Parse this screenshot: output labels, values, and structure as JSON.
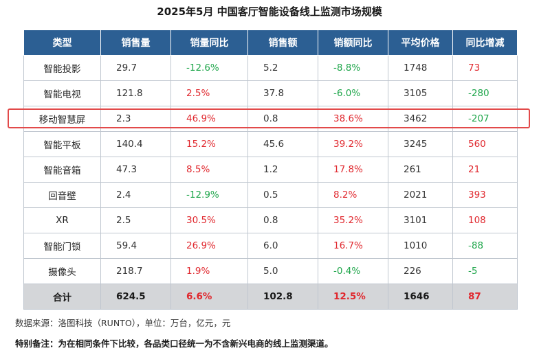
{
  "title": "2025年5月 中国客厅智能设备线上监测市场规模",
  "headers": [
    "类型",
    "销售量",
    "销量同比",
    "销售额",
    "销额同比",
    "平均价格",
    "同比增减"
  ],
  "rows": [
    {
      "type": "智能投影",
      "volume": "29.7",
      "volume_yoy": "-12.6%",
      "sales": "5.2",
      "sales_yoy": "-8.8%",
      "avg_price": "1748",
      "price_change": "73"
    },
    {
      "type": "智能电视",
      "volume": "121.8",
      "volume_yoy": "2.5%",
      "sales": "37.8",
      "sales_yoy": "-6.0%",
      "avg_price": "3105",
      "price_change": "-280"
    },
    {
      "type": "移动智慧屏",
      "volume": "2.3",
      "volume_yoy": "46.9%",
      "sales": "0.8",
      "sales_yoy": "38.6%",
      "avg_price": "3462",
      "price_change": "-207"
    },
    {
      "type": "智能平板",
      "volume": "140.4",
      "volume_yoy": "15.2%",
      "sales": "45.6",
      "sales_yoy": "39.2%",
      "avg_price": "3245",
      "price_change": "560"
    },
    {
      "type": "智能音箱",
      "volume": "47.3",
      "volume_yoy": "8.5%",
      "sales": "1.2",
      "sales_yoy": "17.8%",
      "avg_price": "261",
      "price_change": "21"
    },
    {
      "type": "回音壁",
      "volume": "2.4",
      "volume_yoy": "-12.9%",
      "sales": "0.5",
      "sales_yoy": "8.2%",
      "avg_price": "2021",
      "price_change": "393"
    },
    {
      "type": "XR",
      "volume": "2.5",
      "volume_yoy": "30.5%",
      "sales": "0.8",
      "sales_yoy": "35.2%",
      "avg_price": "3101",
      "price_change": "108"
    },
    {
      "type": "智能门锁",
      "volume": "59.4",
      "volume_yoy": "26.9%",
      "sales": "6.0",
      "sales_yoy": "16.7%",
      "avg_price": "1010",
      "price_change": "-88"
    },
    {
      "type": "摄像头",
      "volume": "218.7",
      "volume_yoy": "1.9%",
      "sales": "5.0",
      "sales_yoy": "-0.4%",
      "avg_price": "226",
      "price_change": "-5"
    }
  ],
  "total": {
    "type": "合计",
    "volume": "624.5",
    "volume_yoy": "6.6%",
    "sales": "102.8",
    "sales_yoy": "12.5%",
    "avg_price": "1646",
    "price_change": "87"
  },
  "highlighted_row": "移动智慧屏",
  "colors": {
    "header_bg": "#2c5f93",
    "positive": "#e0282e",
    "negative": "#1fa64b",
    "highlight_border": "#e24a4a",
    "total_bg": "#d4d6d9"
  },
  "notes": {
    "source": "数据来源：洛图科技（RUNTO），单位：万台，亿元，元",
    "remark": "特别备注：为在相同条件下比较，各品类口径统一为不含新兴电商的线上监测渠道。"
  }
}
